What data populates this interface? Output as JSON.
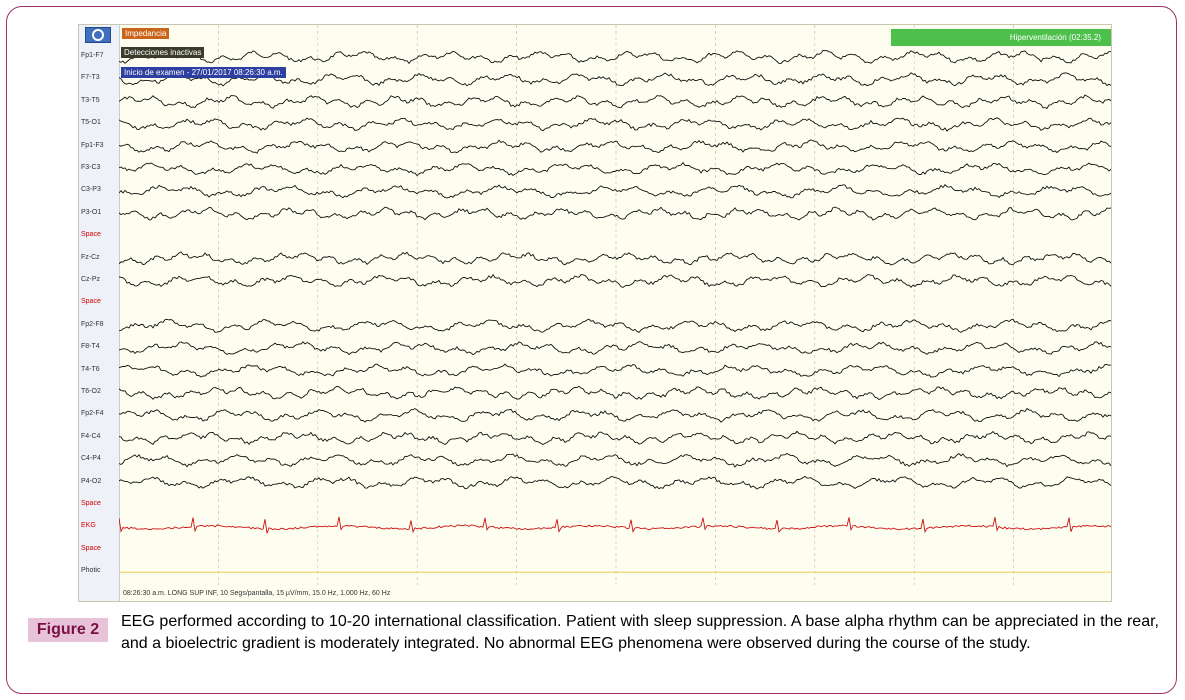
{
  "figure": {
    "label": "Figure 2",
    "caption": "EEG performed according to 10-20 international classification. Patient with sleep suppression. A base alpha rhythm can be appreciated in the rear, and a bioelectric gradient is moderately integrated. No abnormal EEG phenomena were observed during the course of the study."
  },
  "toolbar": {
    "settings_icon": "settings-gear-icon",
    "impedance_label": "Impedancia",
    "detections_label": "Detecciones inactivas",
    "exam_start_label": "Inicio de examen - 27/01/2017 08:26:30 a.m.",
    "hyperventilation_label": "Hiperventilación (02:35.2)"
  },
  "channels": [
    {
      "label": "Fp1-F7",
      "type": "eeg"
    },
    {
      "label": "F7-T3",
      "type": "eeg"
    },
    {
      "label": "T3-T5",
      "type": "eeg"
    },
    {
      "label": "T5-O1",
      "type": "eeg"
    },
    {
      "label": "Fp1-F3",
      "type": "eeg"
    },
    {
      "label": "F3-C3",
      "type": "eeg"
    },
    {
      "label": "C3-P3",
      "type": "eeg"
    },
    {
      "label": "P3-O1",
      "type": "eeg"
    },
    {
      "label": "Space",
      "type": "space"
    },
    {
      "label": "Fz-Cz",
      "type": "eeg"
    },
    {
      "label": "Cz-Pz",
      "type": "eeg"
    },
    {
      "label": "Space",
      "type": "space"
    },
    {
      "label": "Fp2-F8",
      "type": "eeg"
    },
    {
      "label": "F8-T4",
      "type": "eeg"
    },
    {
      "label": "T4-T6",
      "type": "eeg"
    },
    {
      "label": "T6-O2",
      "type": "eeg"
    },
    {
      "label": "Fp2-F4",
      "type": "eeg"
    },
    {
      "label": "F4-C4",
      "type": "eeg"
    },
    {
      "label": "C4-P4",
      "type": "eeg"
    },
    {
      "label": "P4-O2",
      "type": "eeg"
    },
    {
      "label": "Space",
      "type": "space"
    },
    {
      "label": "EKG",
      "type": "ekg"
    },
    {
      "label": "Space",
      "type": "space"
    },
    {
      "label": "Photic",
      "type": "photic"
    }
  ],
  "footer": {
    "settings_text": "08:26:30 a.m. LONG SUP INF, 10 Segs/pantalla, 15 µV/mm, 15.0 Hz, 1.000 Hz, 60 Hz"
  },
  "colors": {
    "eeg_trace": "#111111",
    "ekg_trace": "#cc1111",
    "photic_line": "#e8c840",
    "space_label": "#d00000",
    "hyperventilation_bar": "#4cc04a",
    "impedance_tag": "#c9641a",
    "figure_label_bg": "#e7c2d8",
    "frame_border": "#a0306a"
  }
}
